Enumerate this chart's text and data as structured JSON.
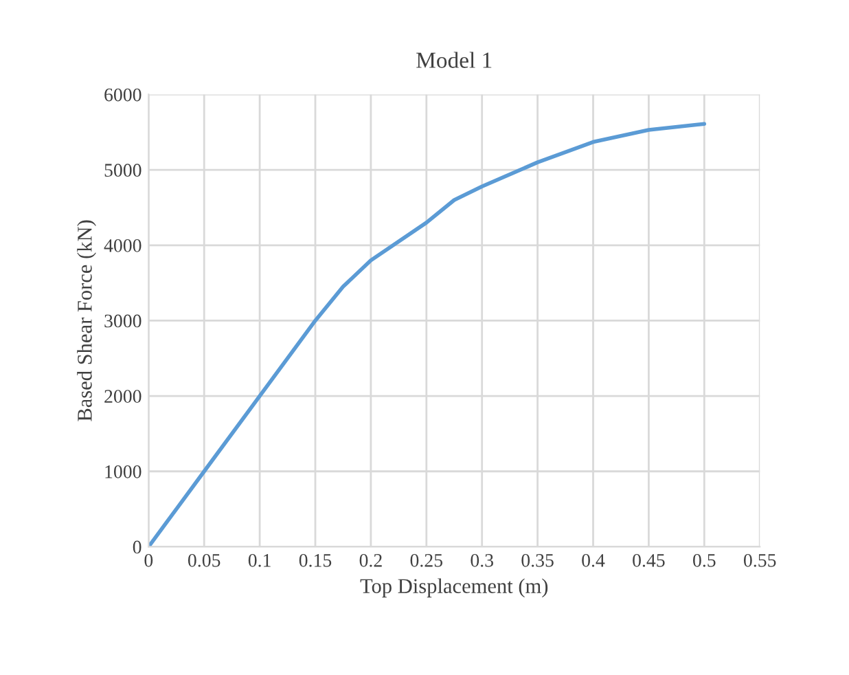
{
  "chart_data": {
    "type": "line",
    "title": "Model 1",
    "xlabel": "Top Displacement (m)",
    "ylabel": "Based Shear Force (kN)",
    "x": [
      0,
      0.05,
      0.1,
      0.15,
      0.175,
      0.2,
      0.25,
      0.275,
      0.3,
      0.35,
      0.4,
      0.45,
      0.5
    ],
    "series": [
      {
        "color": "#5b9bd5",
        "values": [
          0,
          1000,
          2000,
          3000,
          3450,
          3800,
          4300,
          4600,
          4780,
          5100,
          5370,
          5530,
          5610
        ]
      }
    ],
    "xlim": [
      0,
      0.55
    ],
    "xticks": [
      0,
      0.05,
      0.1,
      0.15,
      0.2,
      0.25,
      0.3,
      0.35,
      0.4,
      0.45,
      0.5,
      0.55
    ],
    "ylim": [
      0,
      6000
    ],
    "yticks": [
      0,
      1000,
      2000,
      3000,
      4000,
      5000,
      6000
    ],
    "grid": true,
    "legend": false,
    "line_style": "solid",
    "marker": "none"
  }
}
